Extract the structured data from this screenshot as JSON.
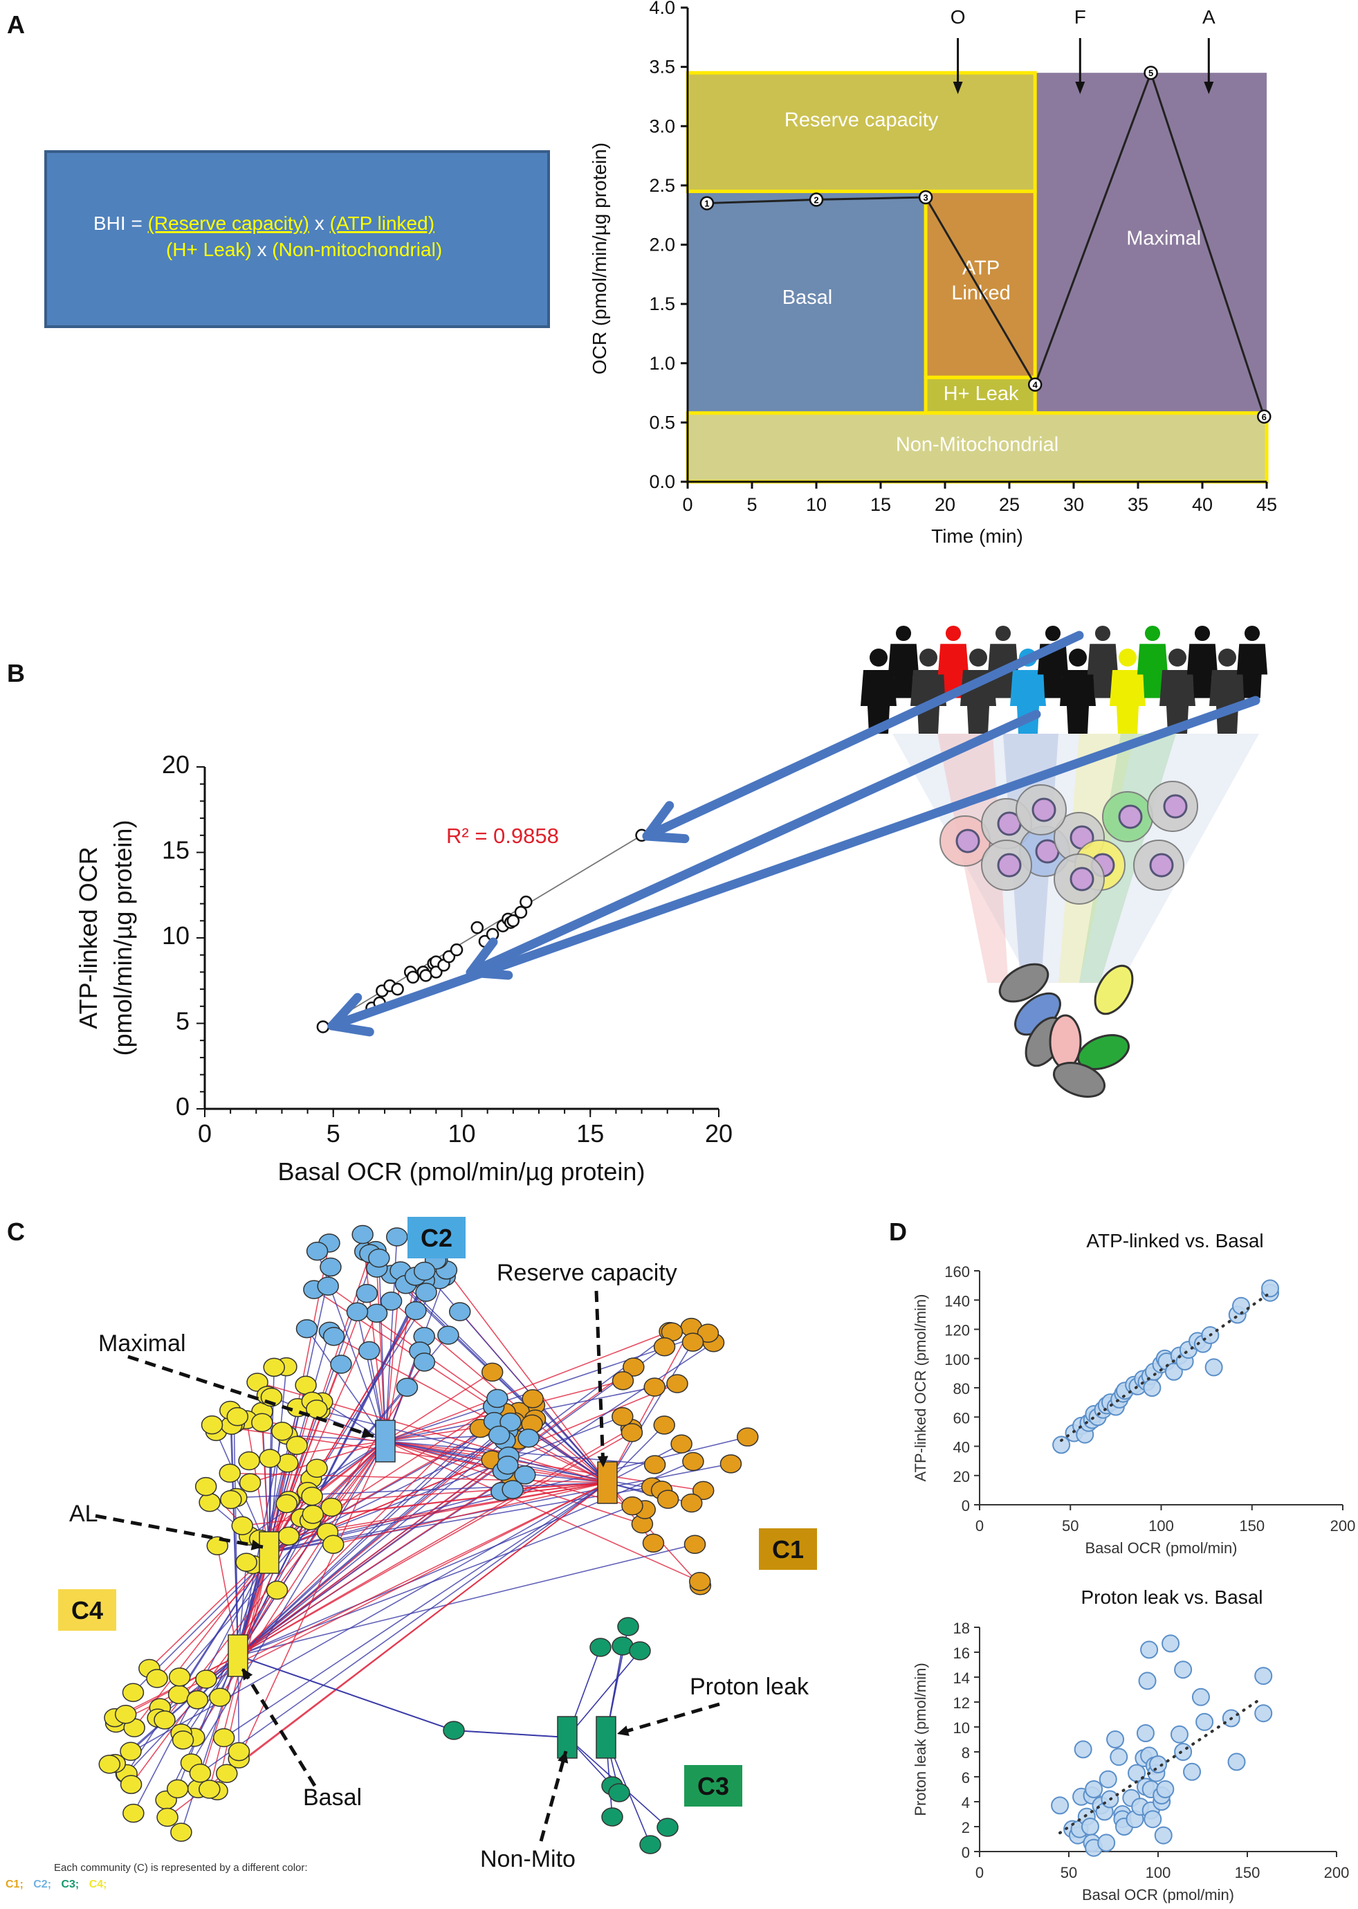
{
  "panels": {
    "a": "A",
    "b": "B",
    "c": "C",
    "d": "D"
  },
  "bhi_box": {
    "prefix": "BHI = ",
    "numerator_1": "(Reserve capacity)",
    "times_1": " x ",
    "numerator_2": "(ATP linked)",
    "denominator_1": "(H+ Leak)",
    "times_2": " x ",
    "denominator_2": "(Non-mitochondrial)",
    "colors": {
      "box": "#4f81bd",
      "text": "#ffff00"
    }
  },
  "chart_data": [
    {
      "id": "A",
      "type": "line",
      "xlabel": "Time (min)",
      "ylabel": "OCR (pmol/min/µg protein)",
      "xlim": [
        0,
        45
      ],
      "ylim": [
        0,
        4.0
      ],
      "xticks": [
        0,
        5,
        10,
        15,
        20,
        25,
        30,
        35,
        40,
        45
      ],
      "yticks": [
        "0.0",
        "0.5",
        "1.0",
        "1.5",
        "2.0",
        "2.5",
        "3.0",
        "3.5",
        "4.0"
      ],
      "points": [
        {
          "label": "1",
          "x": 1.5,
          "y": 2.35
        },
        {
          "label": "2",
          "x": 10,
          "y": 2.38
        },
        {
          "label": "3",
          "x": 18.5,
          "y": 2.4
        },
        {
          "label": "4",
          "x": 27,
          "y": 0.82
        },
        {
          "label": "5",
          "x": 36,
          "y": 3.45
        },
        {
          "label": "6",
          "x": 44.8,
          "y": 0.55
        }
      ],
      "injections": [
        {
          "label": "O",
          "x": 21
        },
        {
          "label": "F",
          "x": 30.5
        },
        {
          "label": "A",
          "x": 40.5
        }
      ],
      "regions": [
        {
          "name": "Basal",
          "x": [
            0,
            18.5
          ],
          "y": [
            0.58,
            2.45
          ],
          "color": "#6d8ab0",
          "outline": false,
          "label_at": [
            9.3,
            1.5
          ]
        },
        {
          "name": "Maximal",
          "x": [
            27,
            45
          ],
          "y": [
            0.58,
            3.45
          ],
          "color": "#8b7a9d",
          "outline": false,
          "label_at": [
            37,
            2.0
          ]
        },
        {
          "name": "Reserve capacity",
          "x": [
            0,
            27
          ],
          "y": [
            2.45,
            3.45
          ],
          "color": "#cbc151",
          "outline": true,
          "label_at": [
            13.5,
            3.0
          ]
        },
        {
          "name": "ATP\nLinked",
          "x": [
            18.5,
            27
          ],
          "y": [
            0.88,
            2.45
          ],
          "color": "#cc9040",
          "outline": true,
          "label_at": [
            22.8,
            1.75
          ]
        },
        {
          "name": "H+ Leak",
          "x": [
            18.5,
            27
          ],
          "y": [
            0.58,
            0.88
          ],
          "color": "#c0bf3c",
          "outline": true,
          "label_at": [
            22.8,
            0.69
          ]
        },
        {
          "name": "Non-Mitochondrial",
          "x": [
            0,
            45
          ],
          "y": [
            0,
            0.58
          ],
          "color": "#d4d28a",
          "outline": true,
          "label_at": [
            22.5,
            0.26
          ]
        }
      ]
    },
    {
      "id": "B",
      "type": "scatter",
      "xlabel": "Basal OCR (pmol/min/µg protein)",
      "ylabel": "ATP-linked OCR",
      "ylabel2": "(pmol/min/µg protein)",
      "xlim": [
        0,
        20
      ],
      "ylim": [
        0,
        20
      ],
      "xticks": [
        0,
        5,
        10,
        15,
        20
      ],
      "yticks": [
        0,
        5,
        10,
        15,
        20
      ],
      "annotation": "R² = 0.9858",
      "annotation_color": "#e0202a",
      "trend": [
        [
          4.6,
          4.8
        ],
        [
          17,
          16
        ]
      ],
      "points": [
        [
          4.6,
          4.8
        ],
        [
          5.2,
          5.1
        ],
        [
          6.5,
          5.9
        ],
        [
          6.8,
          6.2
        ],
        [
          6.9,
          6.9
        ],
        [
          7.2,
          7.2
        ],
        [
          7.5,
          7.0
        ],
        [
          8.0,
          8.0
        ],
        [
          8.1,
          7.7
        ],
        [
          8.5,
          8.0
        ],
        [
          8.6,
          7.8
        ],
        [
          8.9,
          8.5
        ],
        [
          9.0,
          8.6
        ],
        [
          9.0,
          8.0
        ],
        [
          9.3,
          8.4
        ],
        [
          9.5,
          8.9
        ],
        [
          9.8,
          9.3
        ],
        [
          10.6,
          10.6
        ],
        [
          10.9,
          9.8
        ],
        [
          11.2,
          10.2
        ],
        [
          11.6,
          10.7
        ],
        [
          11.8,
          11.1
        ],
        [
          11.9,
          10.9
        ],
        [
          12.0,
          11.0
        ],
        [
          12.3,
          11.5
        ],
        [
          12.5,
          12.1
        ],
        [
          17,
          16
        ]
      ]
    },
    {
      "id": "D1",
      "type": "scatter",
      "title": "ATP-linked vs. Basal",
      "xlabel": "Basal OCR (pmol/min)",
      "ylabel": "ATP-linked OCR (pmol/min)",
      "xlim": [
        0,
        200
      ],
      "ylim": [
        0,
        160
      ],
      "xticks": [
        0,
        50,
        100,
        150,
        200
      ],
      "yticks": [
        0,
        20,
        40,
        60,
        80,
        100,
        120,
        140,
        160
      ],
      "trend": [
        [
          45,
          44
        ],
        [
          160,
          145
        ]
      ],
      "points": [
        [
          45,
          41
        ],
        [
          52,
          49
        ],
        [
          56,
          54
        ],
        [
          58,
          48
        ],
        [
          60,
          56
        ],
        [
          62,
          58
        ],
        [
          63,
          62
        ],
        [
          65,
          60
        ],
        [
          68,
          65
        ],
        [
          70,
          68
        ],
        [
          72,
          70
        ],
        [
          75,
          67
        ],
        [
          77,
          72
        ],
        [
          79,
          76
        ],
        [
          80,
          78
        ],
        [
          85,
          82
        ],
        [
          87,
          81
        ],
        [
          90,
          86
        ],
        [
          92,
          84
        ],
        [
          94,
          88
        ],
        [
          95,
          80
        ],
        [
          96,
          91
        ],
        [
          100,
          96
        ],
        [
          102,
          100
        ],
        [
          103,
          98
        ],
        [
          107,
          91
        ],
        [
          110,
          102
        ],
        [
          113,
          98
        ],
        [
          115,
          106
        ],
        [
          120,
          112
        ],
        [
          123,
          110
        ],
        [
          127,
          116
        ],
        [
          129,
          94
        ],
        [
          142,
          130
        ],
        [
          144,
          136
        ],
        [
          160,
          145
        ],
        [
          160,
          148
        ]
      ]
    },
    {
      "id": "D2",
      "type": "scatter",
      "title": "Proton leak vs. Basal",
      "xlabel": "Basal OCR (pmol/min)",
      "ylabel": "Proton leak (pmol/min)",
      "xlim": [
        0,
        200
      ],
      "ylim": [
        0,
        18
      ],
      "xticks": [
        0,
        50,
        100,
        150,
        200
      ],
      "yticks": [
        0,
        2,
        4,
        6,
        8,
        10,
        12,
        14,
        16,
        18
      ],
      "trend": [
        [
          45,
          1.5
        ],
        [
          158,
          12.3
        ]
      ],
      "points": [
        [
          45,
          3.7
        ],
        [
          52,
          1.8
        ],
        [
          55,
          1.3
        ],
        [
          56,
          1.8
        ],
        [
          57,
          4.4
        ],
        [
          58,
          8.2
        ],
        [
          60,
          2.8
        ],
        [
          62,
          2.0
        ],
        [
          63,
          4.5
        ],
        [
          63,
          0.7
        ],
        [
          64,
          0.3
        ],
        [
          64,
          5.0
        ],
        [
          68,
          3.7
        ],
        [
          70,
          3.2
        ],
        [
          71,
          0.7
        ],
        [
          72,
          5.8
        ],
        [
          73,
          4.2
        ],
        [
          76,
          9.0
        ],
        [
          78,
          7.6
        ],
        [
          80,
          3.0
        ],
        [
          80,
          2.6
        ],
        [
          81,
          2.0
        ],
        [
          85,
          4.3
        ],
        [
          87,
          2.6
        ],
        [
          88,
          6.3
        ],
        [
          90,
          3.6
        ],
        [
          92,
          7.5
        ],
        [
          93,
          9.5
        ],
        [
          93,
          5.2
        ],
        [
          94,
          13.7
        ],
        [
          95,
          16.2
        ],
        [
          95,
          7.7
        ],
        [
          96,
          5.0
        ],
        [
          96,
          3.3
        ],
        [
          97,
          2.6
        ],
        [
          98,
          6.9
        ],
        [
          99,
          6.3
        ],
        [
          100,
          7.0
        ],
        [
          102,
          4.0
        ],
        [
          102,
          4.5
        ],
        [
          103,
          1.3
        ],
        [
          104,
          5.0
        ],
        [
          107,
          16.7
        ],
        [
          112,
          9.4
        ],
        [
          114,
          14.6
        ],
        [
          114,
          8.0
        ],
        [
          119,
          6.4
        ],
        [
          124,
          12.4
        ],
        [
          126,
          10.4
        ],
        [
          141,
          10.7
        ],
        [
          144,
          7.2
        ],
        [
          159,
          14.1
        ],
        [
          159,
          11.1
        ]
      ]
    }
  ],
  "network": {
    "communities": [
      {
        "label": "C1",
        "color": "#e39b1b",
        "box": "#c8900a",
        "nodes": 45
      },
      {
        "label": "C2",
        "color": "#6fb2e3",
        "box": "#4aa8e0",
        "nodes": 40
      },
      {
        "label": "C3",
        "color": "#139a6a",
        "box": "#1c9a55",
        "nodes": 10
      },
      {
        "label": "C4",
        "color": "#f2e530",
        "box": "#f6d84a",
        "nodes": 90
      }
    ],
    "labels": {
      "reserve": "Reserve capacity",
      "maximal": "Maximal",
      "al": "AL",
      "basal": "Basal",
      "proton": "Proton leak",
      "nonmito": "Non-Mito"
    },
    "edge_colors": {
      "positive": "#e0203a",
      "negative": "#3a3aa8"
    },
    "legend": {
      "text": "Each community (C) is represented by a different color:",
      "items": [
        "C1;",
        "C2;",
        "C3;",
        "C4;"
      ]
    }
  }
}
